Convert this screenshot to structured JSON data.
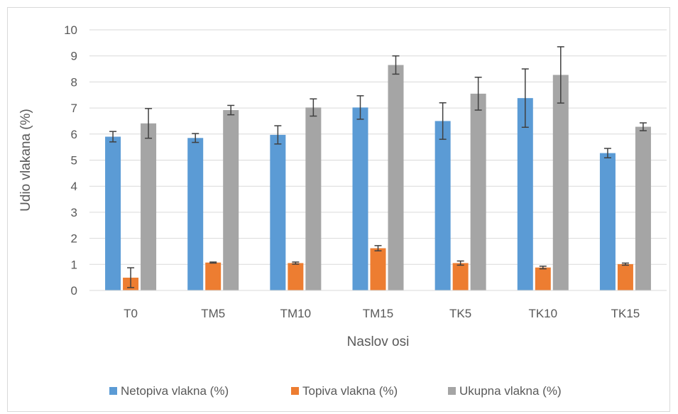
{
  "chart_data": {
    "type": "bar",
    "title": "",
    "xlabel": "Naslov osi",
    "ylabel": "Udio vlakana (%)",
    "ylim": [
      0,
      10
    ],
    "yticks": [
      "0",
      "1",
      "2",
      "3",
      "4",
      "5",
      "6",
      "7",
      "8",
      "9",
      "10"
    ],
    "grid": true,
    "legend_position": "bottom",
    "categories": [
      "T0",
      "TM5",
      "TM10",
      "TM15",
      "TK5",
      "TK10",
      "TK15"
    ],
    "series": [
      {
        "name": "Netopiva vlakna (%)",
        "color": "#5b9bd5",
        "values": [
          5.9,
          5.85,
          5.97,
          7.02,
          6.5,
          7.38,
          5.27
        ],
        "errors": [
          0.2,
          0.17,
          0.35,
          0.45,
          0.7,
          1.12,
          0.18
        ]
      },
      {
        "name": "Topiva vlakna (%)",
        "color": "#ed7d31",
        "values": [
          0.49,
          1.07,
          1.05,
          1.62,
          1.05,
          0.88,
          1.01
        ],
        "errors": [
          0.38,
          0.02,
          0.04,
          0.1,
          0.08,
          0.05,
          0.04
        ]
      },
      {
        "name": "Ukupna vlakna (%)",
        "color": "#a5a5a5",
        "values": [
          6.41,
          6.92,
          7.02,
          8.65,
          7.55,
          8.27,
          6.28
        ],
        "errors": [
          0.57,
          0.18,
          0.33,
          0.35,
          0.63,
          1.08,
          0.15
        ]
      }
    ]
  }
}
